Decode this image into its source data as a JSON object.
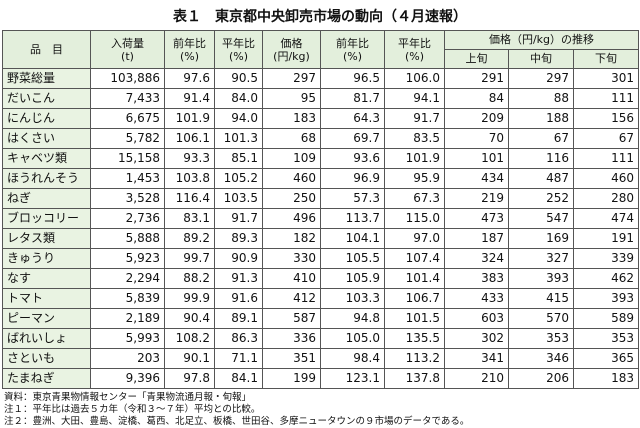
{
  "title": "表１　東京都中央卸売市場の動向（４月速報）",
  "table": {
    "columns": [
      "品　目",
      "入荷量\n(t)",
      "前年比\n(%)",
      "平年比\n(%)",
      "価格\n(円/kg)",
      "前年比\n(%)",
      "平年比\n(%)"
    ],
    "trend": "価格（円/kg）の推移",
    "periods": [
      "上旬",
      "中旬",
      "下旬"
    ],
    "rows": [
      [
        "野菜総量",
        "103,886",
        "97.6",
        "90.5",
        "297",
        "96.5",
        "106.0",
        "291",
        "297",
        "301"
      ],
      [
        "だいこん",
        "7,433",
        "91.4",
        "84.0",
        "95",
        "81.7",
        "94.1",
        "84",
        "88",
        "111"
      ],
      [
        "にんじん",
        "6,675",
        "101.9",
        "94.0",
        "183",
        "64.3",
        "91.7",
        "209",
        "188",
        "156"
      ],
      [
        "はくさい",
        "5,782",
        "106.1",
        "101.3",
        "68",
        "69.7",
        "83.5",
        "70",
        "67",
        "67"
      ],
      [
        "キャベツ類",
        "15,158",
        "93.3",
        "85.1",
        "109",
        "93.6",
        "101.9",
        "101",
        "116",
        "111"
      ],
      [
        "ほうれんそう",
        "1,453",
        "103.8",
        "105.2",
        "460",
        "96.9",
        "95.9",
        "434",
        "487",
        "460"
      ],
      [
        "ねぎ",
        "3,528",
        "116.4",
        "103.5",
        "250",
        "57.3",
        "67.3",
        "219",
        "252",
        "280"
      ],
      [
        "ブロッコリー",
        "2,736",
        "83.1",
        "91.7",
        "496",
        "113.7",
        "115.0",
        "473",
        "547",
        "474"
      ],
      [
        "レタス類",
        "5,888",
        "89.2",
        "89.3",
        "182",
        "104.1",
        "97.0",
        "187",
        "169",
        "191"
      ],
      [
        "きゅうり",
        "5,923",
        "99.7",
        "90.9",
        "330",
        "105.5",
        "107.4",
        "324",
        "327",
        "339"
      ],
      [
        "なす",
        "2,294",
        "88.2",
        "91.3",
        "410",
        "105.9",
        "101.4",
        "383",
        "393",
        "462"
      ],
      [
        "トマト",
        "5,839",
        "99.9",
        "91.6",
        "412",
        "103.3",
        "106.7",
        "433",
        "415",
        "393"
      ],
      [
        "ピーマン",
        "2,189",
        "90.4",
        "89.1",
        "587",
        "94.8",
        "101.5",
        "603",
        "570",
        "589"
      ],
      [
        "ばれいしょ",
        "5,993",
        "108.2",
        "86.3",
        "336",
        "105.0",
        "135.5",
        "302",
        "353",
        "353"
      ],
      [
        "さといも",
        "203",
        "90.1",
        "71.1",
        "351",
        "98.4",
        "113.2",
        "341",
        "346",
        "365"
      ],
      [
        "たまねぎ",
        "9,396",
        "97.8",
        "84.1",
        "199",
        "123.1",
        "137.8",
        "210",
        "206",
        "183"
      ]
    ]
  },
  "notes": [
    "資料：東京青果物情報センター「青果物流通月報・旬報」",
    "注１：平年比は過去５カ年（令和３～７年）平均との比較。",
    "注２：豊洲、大田、豊島、淀橋、葛西、北足立、板橋、世田谷、多摩ニュータウンの９市場のデータである。"
  ]
}
